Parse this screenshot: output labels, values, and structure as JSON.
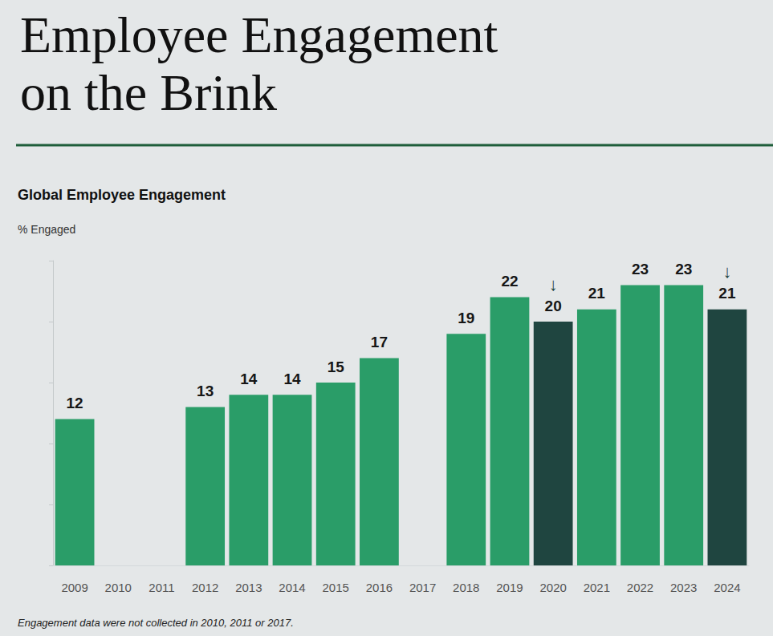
{
  "chart_data": {
    "type": "bar",
    "title": "Employee Engagement on the Brink",
    "subtitle": "Global Employee Engagement",
    "ylabel": "% Engaged",
    "footnote": "Engagement data were not collected in 2010, 2011 or 2017.",
    "categories": [
      "2009",
      "2010",
      "2011",
      "2012",
      "2013",
      "2014",
      "2015",
      "2016",
      "2017",
      "2018",
      "2019",
      "2020",
      "2021",
      "2022",
      "2023",
      "2024"
    ],
    "values": [
      12,
      null,
      null,
      13,
      14,
      14,
      15,
      17,
      null,
      19,
      22,
      20,
      21,
      23,
      23,
      21
    ],
    "colors": [
      "#2a9d68",
      "#2a9d68",
      "#2a9d68",
      "#2a9d68",
      "#2a9d68",
      "#2a9d68",
      "#2a9d68",
      "#2a9d68",
      "#2a9d68",
      "#2a9d68",
      "#2a9d68",
      "#1f4540",
      "#2a9d68",
      "#2a9d68",
      "#2a9d68",
      "#1f4540"
    ],
    "annotations": [
      {
        "category": "2020",
        "text": "↓"
      },
      {
        "category": "2024",
        "text": "↓"
      }
    ],
    "ylim": [
      0,
      25
    ],
    "yticks": [
      0,
      5,
      10,
      15,
      20,
      25
    ],
    "grid": false,
    "data_labels": true,
    "tick_labels": "x"
  }
}
